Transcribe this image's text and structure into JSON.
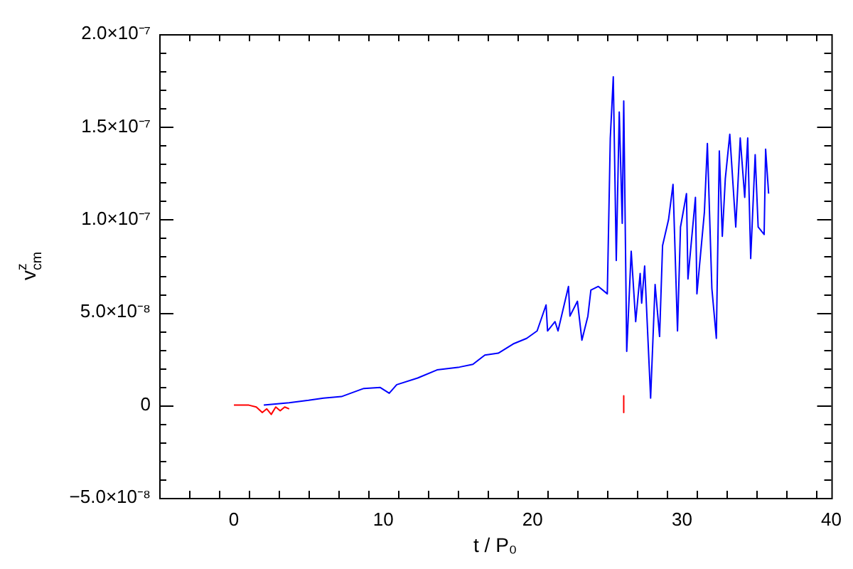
{
  "chart_data": {
    "type": "line",
    "xlabel": "t / P₀",
    "ylabel": "v$^{z}$$_{cm}$",
    "xlim": [
      -5,
      40
    ],
    "xticks": [
      0,
      10,
      20,
      30,
      40
    ],
    "ylim": [
      -5e-08,
      2e-07
    ],
    "yticks": [
      {
        "value": -5e-08,
        "label": "−5.0×10⁻⁸"
      },
      {
        "value": 0,
        "label": "0"
      },
      {
        "value": 5e-08,
        "label": "5.0×10⁻⁸"
      },
      {
        "value": 1e-07,
        "label": "1.0×10⁻⁷"
      },
      {
        "value": 1.5e-07,
        "label": "1.5×10⁻⁷"
      },
      {
        "value": 2e-07,
        "label": "2.0×10⁻⁷"
      }
    ],
    "grid": false,
    "legend": false,
    "marker": "none",
    "line_style": "solid",
    "series": [
      {
        "color": "#0000ff",
        "x": [
          2.0,
          3.7,
          5.0,
          6.0,
          7.2,
          8.7,
          9.8,
          10.4,
          10.9,
          12.3,
          13.6,
          15.1,
          16.0,
          16.8,
          17.7,
          18.7,
          19.6,
          20.3,
          20.9,
          21.0,
          21.5,
          21.7,
          22.4,
          22.5,
          23.0,
          23.3,
          23.7,
          23.9,
          24.4,
          25.0,
          25.2,
          25.4,
          25.6,
          25.8,
          26.0,
          26.1,
          26.3,
          26.6,
          26.9,
          27.2,
          27.3,
          27.5,
          27.9,
          28.2,
          28.5,
          28.7,
          29.1,
          29.4,
          29.7,
          29.9,
          30.3,
          30.4,
          30.9,
          31.0,
          31.5,
          31.7,
          32.0,
          32.3,
          32.5,
          32.7,
          32.9,
          33.2,
          33.6,
          33.9,
          34.2,
          34.4,
          34.6,
          34.9,
          35.1,
          35.5,
          35.6,
          35.8
        ],
        "values": [
          0,
          1.3e-09,
          2.6e-09,
          3.8e-09,
          4.6e-09,
          9e-09,
          9.5e-09,
          6.4e-09,
          1.1e-08,
          1.46e-08,
          1.9e-08,
          2.05e-08,
          2.2e-08,
          2.7e-08,
          2.8e-08,
          3.3e-08,
          3.6e-08,
          4e-08,
          5.4e-08,
          4e-08,
          4.5e-08,
          4e-08,
          6.4e-08,
          4.8e-08,
          5.6e-08,
          3.5e-08,
          4.8e-08,
          6.2e-08,
          6.4e-08,
          6e-08,
          1.44e-07,
          1.77e-07,
          7.8e-08,
          1.58e-07,
          9.8e-08,
          1.64e-07,
          2.9e-08,
          8.3e-08,
          4.5e-08,
          7.1e-08,
          5.5e-08,
          7.5e-08,
          3.8e-09,
          6.5e-08,
          3.7e-08,
          8.6e-08,
          1e-07,
          1.19e-07,
          4e-08,
          9.6e-08,
          1.14e-07,
          6.8e-08,
          1.12e-07,
          6e-08,
          1.04e-07,
          1.41e-07,
          6.3e-08,
          3.6e-08,
          1.37e-07,
          9.1e-08,
          1.22e-07,
          1.46e-07,
          9.6e-08,
          1.44e-07,
          1.12e-07,
          1.44e-07,
          7.9e-08,
          1.35e-07,
          9.6e-08,
          9.2e-08,
          1.38e-07,
          1.14e-07
        ]
      },
      {
        "color": "#ff0000",
        "x": [
          0,
          1.0,
          1.5,
          1.9,
          2.2,
          2.5,
          2.8,
          3.1,
          3.4,
          3.7,
          null,
          26.1,
          26.1
        ],
        "values": [
          0,
          0,
          -1e-09,
          -4e-09,
          -2e-09,
          -5e-09,
          -1e-09,
          -3e-09,
          -1e-09,
          -2e-09,
          null,
          5e-09,
          -4e-09
        ]
      }
    ]
  }
}
